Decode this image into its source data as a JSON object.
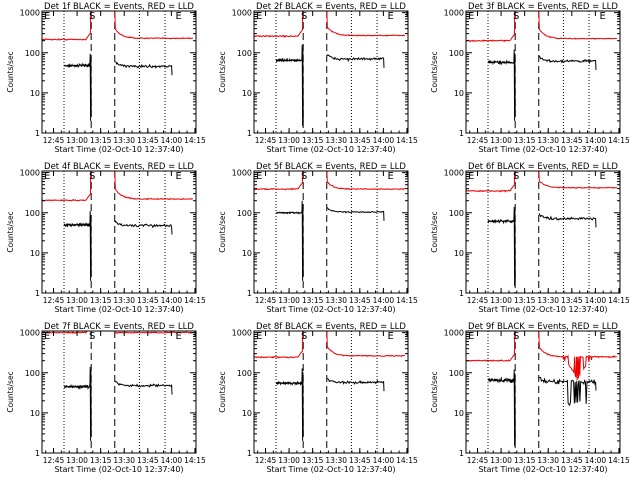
{
  "colors": {
    "events": "#000000",
    "lld": "#ee0000",
    "frame": "#000000",
    "background": "#ffffff"
  },
  "common": {
    "ylabel": "Counts/sec",
    "xlabel": "Start Time (02-Oct-10 12:37:40)",
    "x_tick_labels": [
      "12:45",
      "13:00",
      "13:15",
      "13:30",
      "13:45",
      "14:00",
      "14:15"
    ],
    "x_tick_minutes": [
      7.33,
      22.33,
      37.33,
      52.33,
      67.33,
      82.33,
      97.33
    ],
    "y_tick_labels": [
      "1",
      "10",
      "100",
      "1000"
    ],
    "y_tick_values": [
      1,
      10,
      100,
      1000
    ],
    "xlim_minutes": [
      0,
      98
    ],
    "ylim": [
      1,
      1100
    ],
    "yscale": "log",
    "event_markers": [
      {
        "label": "E",
        "minute": 0.6,
        "line": "none"
      },
      {
        "label": "S",
        "minute": 31.3,
        "line": "dashed"
      },
      {
        "label": "E",
        "minute": 84.3,
        "line": "none"
      }
    ],
    "vertical_lines": [
      {
        "minute": 14.0,
        "style": "dotted"
      },
      {
        "minute": 31.3,
        "style": "dashed"
      },
      {
        "minute": 46.3,
        "style": "dashed"
      },
      {
        "minute": 62.0,
        "style": "dotted"
      },
      {
        "minute": 78.3,
        "style": "dotted"
      }
    ]
  },
  "chart_data": [
    {
      "type": "line",
      "detector": "1f",
      "title": "Det 1f BLACK = Events, RED = LLD",
      "series": [
        {
          "name": "LLD",
          "color": "red",
          "pre_level": 215,
          "post_level": 230,
          "spike_peak": 1000,
          "decay_start": 400,
          "dip": false
        },
        {
          "name": "Events",
          "color": "black",
          "pre_level": 48,
          "post_level": 46,
          "spike_peak": 95,
          "dip_min": 2,
          "noise": "moderate"
        }
      ]
    },
    {
      "type": "line",
      "detector": "2f",
      "title": "Det 2f BLACK = Events, RED = LLD",
      "series": [
        {
          "name": "LLD",
          "color": "red",
          "pre_level": 260,
          "post_level": 270,
          "spike_peak": 1000,
          "decay_start": 450,
          "dip": false
        },
        {
          "name": "Events",
          "color": "black",
          "pre_level": 65,
          "post_level": 70,
          "spike_peak": 160,
          "dip_min": 1.5,
          "noise": "moderate"
        }
      ]
    },
    {
      "type": "line",
      "detector": "3f",
      "title": "Det 3f BLACK = Events, RED = LLD",
      "series": [
        {
          "name": "LLD",
          "color": "red",
          "pre_level": 200,
          "post_level": 225,
          "spike_peak": 1000,
          "decay_start": 400,
          "dip": false
        },
        {
          "name": "Events",
          "color": "black",
          "pre_level": 58,
          "post_level": 62,
          "spike_peak": 120,
          "dip_min": 2,
          "noise": "moderate"
        }
      ]
    },
    {
      "type": "line",
      "detector": "4f",
      "title": "Det 4f BLACK = Events, RED = LLD",
      "series": [
        {
          "name": "LLD",
          "color": "red",
          "pre_level": 205,
          "post_level": 220,
          "spike_peak": 1000,
          "decay_start": 400,
          "dip": false
        },
        {
          "name": "Events",
          "color": "black",
          "pre_level": 50,
          "post_level": 48,
          "spike_peak": 110,
          "dip_min": 2,
          "noise": "moderate"
        }
      ]
    },
    {
      "type": "line",
      "detector": "5f",
      "title": "Det 5f BLACK = Events, RED = LLD",
      "series": [
        {
          "name": "LLD",
          "color": "red",
          "pre_level": 390,
          "post_level": 390,
          "spike_peak": 1000,
          "decay_start": 600,
          "dip": false
        },
        {
          "name": "Events",
          "color": "black",
          "pre_level": 100,
          "post_level": 105,
          "spike_peak": 200,
          "dip_min": 2,
          "noise": "low"
        }
      ]
    },
    {
      "type": "line",
      "detector": "6f",
      "title": "Det 6f BLACK = Events, RED = LLD",
      "series": [
        {
          "name": "LLD",
          "color": "red",
          "pre_level": 350,
          "post_level": 420,
          "spike_peak": 1000,
          "decay_start": 650,
          "dip": false
        },
        {
          "name": "Events",
          "color": "black",
          "pre_level": 62,
          "post_level": 72,
          "spike_peak": 140,
          "dip_min": 1.5,
          "noise": "moderate"
        }
      ]
    },
    {
      "type": "line",
      "detector": "7f",
      "title": "Det 7f BLACK = Events, RED = LLD",
      "series": [
        {
          "name": "LLD",
          "color": "red",
          "pre_level": 1000,
          "post_level": 1000,
          "spike_peak": 1000,
          "decay_start": 1000,
          "dip": false
        },
        {
          "name": "Events",
          "color": "black",
          "pre_level": 45,
          "post_level": 48,
          "spike_peak": 140,
          "dip_min": 2,
          "noise": "moderate"
        }
      ]
    },
    {
      "type": "line",
      "detector": "8f",
      "title": "Det 8f BLACK = Events, RED = LLD",
      "series": [
        {
          "name": "LLD",
          "color": "red",
          "pre_level": 245,
          "post_level": 265,
          "spike_peak": 1000,
          "decay_start": 450,
          "dip": false
        },
        {
          "name": "Events",
          "color": "black",
          "pre_level": 55,
          "post_level": 58,
          "spike_peak": 130,
          "dip_min": 2,
          "noise": "moderate"
        }
      ]
    },
    {
      "type": "line",
      "detector": "9f",
      "title": "Det 9f BLACK = Events, RED = LLD",
      "series": [
        {
          "name": "LLD",
          "color": "red",
          "pre_level": 200,
          "post_level": 250,
          "spike_peak": 1000,
          "decay_start": 450,
          "dip": true
        },
        {
          "name": "Events",
          "color": "black",
          "pre_level": 65,
          "post_level": 60,
          "spike_peak": 120,
          "dip_min": 1.5,
          "noise": "high"
        }
      ]
    }
  ]
}
